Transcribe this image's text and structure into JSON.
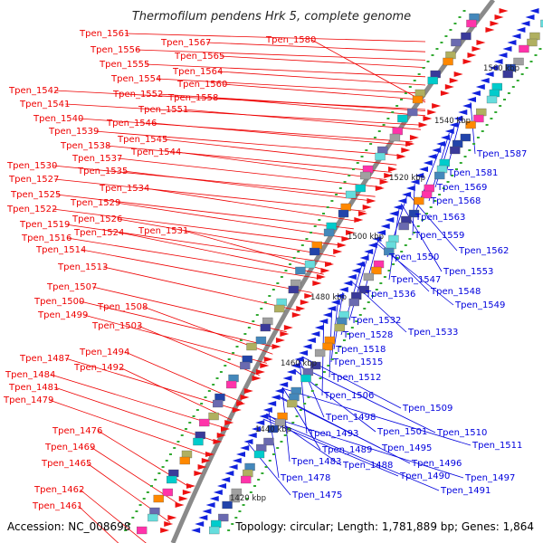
{
  "title": "Thermofilum pendens Hrk 5, complete genome",
  "accession_text": "Accession: NC_008698",
  "summary_text": "Topology: circular; Length: 1,781,889 bp; Genes: 1,864",
  "colors": {
    "backbone": "#8a8a8a",
    "plus_strand_label": "#ee0000",
    "minus_strand_label": "#0000dd",
    "tick_mark": "#33aa33",
    "feature_palette": [
      "#3a3a9a",
      "#6a6ab0",
      "#00cccc",
      "#66dddd",
      "#4488bb",
      "#b0b060",
      "#ff33aa",
      "#ff8800",
      "#a0a0a0",
      "#2244aa"
    ]
  },
  "scale_ticks": [
    "1560 kbp",
    "1540 kbp",
    "1520 kbp",
    "1500 kbp",
    "1480 kbp",
    "1460 kbp",
    "1440 kbp",
    "1420 kbp"
  ],
  "plus_strand_genes": [
    "Tpen_1561",
    "Tpen_1567",
    "Tpen_1556",
    "Tpen_1565",
    "Tpen_1555",
    "Tpen_1564",
    "Tpen_1554",
    "Tpen_1560",
    "Tpen_1552",
    "Tpen_1558",
    "Tpen_1542",
    "Tpen_1551",
    "Tpen_1541",
    "Tpen_1546",
    "Tpen_1540",
    "Tpen_1539",
    "Tpen_1545",
    "Tpen_1538",
    "Tpen_1544",
    "Tpen_1537",
    "Tpen_1535",
    "Tpen_1530",
    "Tpen_1527",
    "Tpen_1534",
    "Tpen_1525",
    "Tpen_1529",
    "Tpen_1522",
    "Tpen_1526",
    "Tpen_1519",
    "Tpen_1531",
    "Tpen_1516",
    "Tpen_1524",
    "Tpen_1514",
    "Tpen_1513",
    "Tpen_1507",
    "Tpen_1500",
    "Tpen_1508",
    "Tpen_1499",
    "Tpen_1503",
    "Tpen_1494",
    "Tpen_1487",
    "Tpen_1492",
    "Tpen_1484",
    "Tpen_1481",
    "Tpen_1479",
    "Tpen_1476",
    "Tpen_1469",
    "Tpen_1465",
    "Tpen_1462",
    "Tpen_1461",
    "Tpen_1580"
  ],
  "minus_strand_genes": [
    "Tpen_1587",
    "Tpen_1581",
    "Tpen_1569",
    "Tpen_1568",
    "Tpen_1563",
    "Tpen_1559",
    "Tpen_1562",
    "Tpen_1550",
    "Tpen_1553",
    "Tpen_1547",
    "Tpen_1548",
    "Tpen_1536",
    "Tpen_1549",
    "Tpen_1532",
    "Tpen_1528",
    "Tpen_1533",
    "Tpen_1518",
    "Tpen_1515",
    "Tpen_1512",
    "Tpen_1506",
    "Tpen_1509",
    "Tpen_1498",
    "Tpen_1501",
    "Tpen_1510",
    "Tpen_1493",
    "Tpen_1495",
    "Tpen_1511",
    "Tpen_1489",
    "Tpen_1496",
    "Tpen_1483",
    "Tpen_1488",
    "Tpen_1490",
    "Tpen_1497",
    "Tpen_1478",
    "Tpen_1491",
    "Tpen_1475"
  ]
}
